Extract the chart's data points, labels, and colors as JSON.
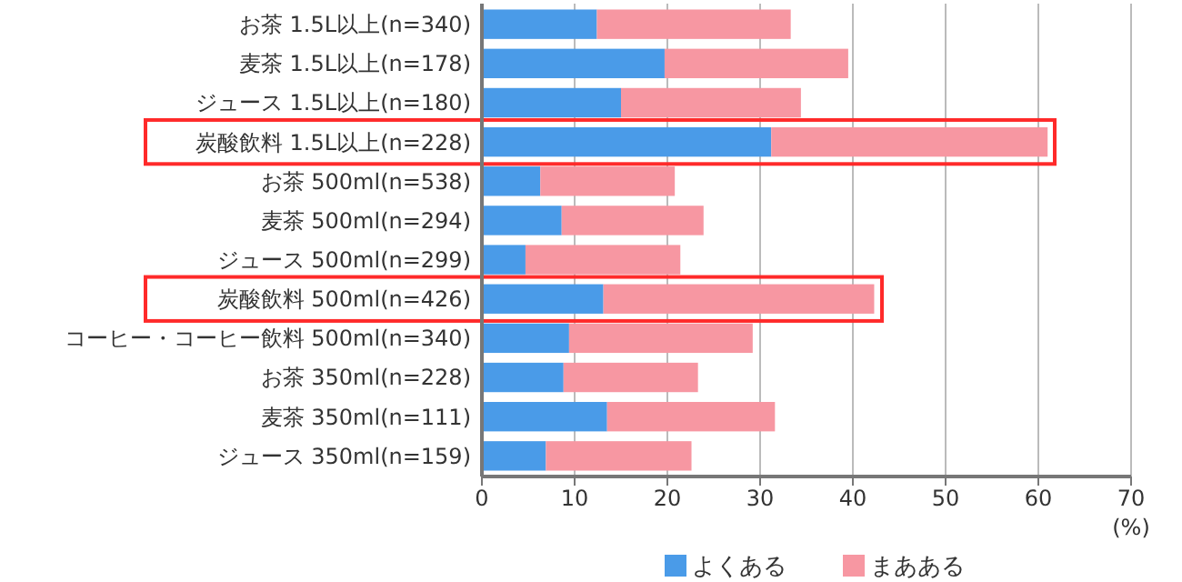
{
  "chart_data": {
    "type": "bar",
    "orientation": "horizontal",
    "stacked": true,
    "categories": [
      "お茶 1.5L以上(n=340)",
      "麦茶 1.5L以上(n=178)",
      "ジュース 1.5L以上(n=180)",
      "炭酸飲料 1.5L以上(n=228)",
      "お茶 500ml(n=538)",
      "麦茶 500ml(n=294)",
      "ジュース 500ml(n=299)",
      "炭酸飲料 500ml(n=426)",
      "コーヒー・コーヒー飲料 500ml(n=340)",
      "お茶 350ml(n=228)",
      "麦茶 350ml(n=111)",
      "ジュース 350ml(n=159)"
    ],
    "series": [
      {
        "name": "よくある",
        "color": "#4a9be8",
        "values": [
          12.4,
          19.7,
          15.0,
          31.2,
          6.3,
          8.6,
          4.7,
          13.1,
          9.4,
          8.8,
          13.5,
          6.9
        ]
      },
      {
        "name": "まあある",
        "color": "#f797a2",
        "values": [
          20.9,
          19.8,
          19.4,
          29.8,
          14.5,
          15.3,
          16.7,
          29.2,
          19.8,
          14.5,
          18.1,
          15.7
        ]
      }
    ],
    "xlim": [
      0,
      70
    ],
    "xticks": [
      0,
      10,
      20,
      30,
      40,
      50,
      60,
      70
    ],
    "xlabel": "(%)",
    "grid": "x",
    "legend": "bottom"
  }
}
